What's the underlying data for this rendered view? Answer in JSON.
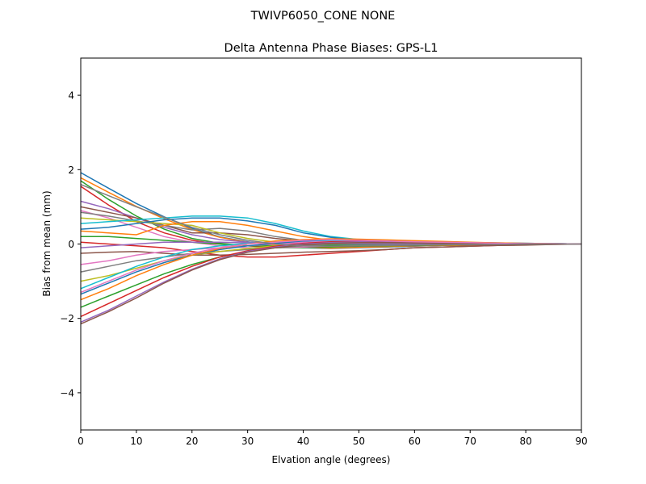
{
  "chart_data": {
    "type": "line",
    "suptitle": "TWIVP6050_CONE  NONE",
    "title": "Delta Antenna Phase Biases: GPS-L1",
    "xlabel": "Elvation angle (degrees)",
    "ylabel": "Bias from mean (mm)",
    "xlim": [
      0,
      90
    ],
    "ylim": [
      -5,
      5
    ],
    "xticks": [
      0,
      10,
      20,
      30,
      40,
      50,
      60,
      70,
      80,
      90
    ],
    "yticks": [
      -4,
      -2,
      0,
      2,
      4
    ],
    "ytick_labels": [
      "−4",
      "−2",
      "0",
      "2",
      "4"
    ],
    "grid": false,
    "colors": [
      "#1f77b4",
      "#ff7f0e",
      "#2ca02c",
      "#d62728",
      "#9467bd",
      "#8c564b",
      "#e377c2",
      "#7f7f7f",
      "#bcbd22",
      "#17becf"
    ],
    "x": [
      0,
      5,
      10,
      15,
      20,
      25,
      30,
      35,
      40,
      45,
      50,
      55,
      60,
      65,
      70,
      75,
      80,
      85,
      90
    ],
    "series": [
      {
        "values": [
          1.92,
          1.5,
          1.09,
          0.73,
          0.42,
          0.19,
          0.06,
          -0.04,
          -0.1,
          -0.12,
          -0.1,
          -0.08,
          -0.06,
          -0.04,
          -0.04,
          -0.02,
          -0.02,
          0,
          0
        ]
      },
      {
        "values": [
          1.78,
          1.39,
          1.01,
          0.68,
          0.39,
          0.18,
          0.05,
          -0.04,
          -0.09,
          -0.11,
          -0.09,
          -0.07,
          -0.05,
          -0.04,
          -0.04,
          -0.02,
          -0.02,
          0,
          0
        ]
      },
      {
        "values": [
          1.7,
          1.2,
          0.75,
          0.4,
          0.15,
          0.02,
          -0.05,
          -0.1,
          -0.1,
          -0.08,
          -0.06,
          -0.05,
          -0.04,
          -0.03,
          -0.02,
          -0.01,
          -0.01,
          0,
          0
        ]
      },
      {
        "values": [
          1.55,
          1.05,
          0.6,
          0.3,
          0.1,
          0,
          -0.05,
          -0.08,
          -0.08,
          -0.06,
          -0.05,
          -0.04,
          -0.03,
          -0.02,
          -0.02,
          -0.01,
          0,
          0,
          0
        ]
      },
      {
        "values": [
          1.15,
          0.95,
          0.7,
          0.45,
          0.25,
          0.12,
          0.05,
          0.02,
          0,
          -0.02,
          -0.02,
          -0.02,
          -0.01,
          -0.01,
          -0.01,
          0,
          0,
          0,
          0
        ]
      },
      {
        "values": [
          1.0,
          0.85,
          0.7,
          0.5,
          0.3,
          0.3,
          0.25,
          0.15,
          0.08,
          0.05,
          0.03,
          0.02,
          0.02,
          0.01,
          0.01,
          0,
          0,
          0,
          0
        ]
      },
      {
        "values": [
          0.9,
          0.7,
          0.45,
          0.2,
          0.05,
          -0.05,
          -0.1,
          -0.1,
          -0.08,
          -0.05,
          -0.04,
          -0.03,
          -0.02,
          -0.02,
          -0.01,
          -0.01,
          0,
          0,
          0
        ]
      },
      {
        "values": [
          0.85,
          0.75,
          0.62,
          0.5,
          0.38,
          0.42,
          0.35,
          0.2,
          0.1,
          0.05,
          0.03,
          0.02,
          0.02,
          0.01,
          0.01,
          0,
          0,
          0,
          0
        ]
      },
      {
        "values": [
          0.7,
          0.65,
          0.6,
          0.55,
          0.5,
          0.3,
          0.15,
          0.05,
          0,
          -0.02,
          -0.02,
          -0.02,
          -0.01,
          -0.01,
          0,
          0,
          0,
          0,
          0
        ]
      },
      {
        "values": [
          0.55,
          0.6,
          0.65,
          0.7,
          0.75,
          0.75,
          0.7,
          0.55,
          0.35,
          0.2,
          0.12,
          0.08,
          0.05,
          0.04,
          0.03,
          0.02,
          0.02,
          0.01,
          0
        ]
      },
      {
        "values": [
          0.4,
          0.45,
          0.55,
          0.65,
          0.7,
          0.7,
          0.62,
          0.5,
          0.3,
          0.18,
          0.1,
          0.07,
          0.05,
          0.03,
          0.02,
          0.02,
          0.01,
          0.01,
          0
        ]
      },
      {
        "values": [
          0.35,
          0.3,
          0.25,
          0.5,
          0.6,
          0.6,
          0.5,
          0.35,
          0.2,
          0.1,
          0.06,
          0.04,
          0.03,
          0.02,
          0.01,
          0.01,
          0,
          0,
          0
        ]
      },
      {
        "values": [
          0.2,
          0.2,
          0.15,
          0.1,
          0.05,
          0,
          -0.05,
          -0.05,
          -0.04,
          -0.03,
          -0.02,
          -0.02,
          -0.01,
          -0.01,
          0,
          0,
          0,
          0,
          0
        ]
      },
      {
        "values": [
          0.05,
          0.0,
          -0.05,
          -0.1,
          -0.2,
          -0.3,
          -0.35,
          -0.35,
          -0.3,
          -0.25,
          -0.2,
          -0.15,
          -0.1,
          -0.08,
          -0.06,
          -0.04,
          -0.02,
          -0.01,
          0
        ]
      },
      {
        "values": [
          -0.1,
          -0.05,
          0,
          0.05,
          0.05,
          0.05,
          0.03,
          0.02,
          0.01,
          0,
          0,
          0,
          0,
          0,
          0,
          0,
          0,
          0,
          0
        ]
      },
      {
        "values": [
          -0.25,
          -0.22,
          -0.2,
          -0.25,
          -0.3,
          -0.3,
          -0.28,
          -0.25,
          -0.22,
          -0.2,
          -0.18,
          -0.15,
          -0.1,
          -0.08,
          -0.06,
          -0.04,
          -0.03,
          -0.01,
          0
        ]
      },
      {
        "values": [
          -0.55,
          -0.45,
          -0.3,
          -0.2,
          -0.15,
          -0.1,
          -0.05,
          0,
          0.05,
          0.08,
          0.08,
          0.06,
          0.05,
          0.04,
          0.03,
          0.02,
          0.01,
          0.01,
          0
        ]
      },
      {
        "values": [
          -0.75,
          -0.6,
          -0.45,
          -0.35,
          -0.25,
          -0.2,
          -0.15,
          -0.1,
          -0.05,
          0,
          0.03,
          0.03,
          0.02,
          0.02,
          0.01,
          0.01,
          0,
          0,
          0
        ]
      },
      {
        "values": [
          -1.0,
          -0.85,
          -0.65,
          -0.45,
          -0.3,
          -0.2,
          -0.12,
          -0.05,
          0,
          0.05,
          0.06,
          0.05,
          0.04,
          0.03,
          0.02,
          0.01,
          0.01,
          0,
          0
        ]
      },
      {
        "values": [
          -1.2,
          -0.9,
          -0.6,
          -0.35,
          -0.15,
          -0.05,
          0.02,
          0.05,
          0.08,
          0.1,
          0.1,
          0.08,
          0.06,
          0.05,
          0.03,
          0.02,
          0.01,
          0.01,
          0
        ]
      },
      {
        "values": [
          -1.35,
          -1.05,
          -0.75,
          -0.5,
          -0.3,
          -0.15,
          -0.05,
          0.02,
          0.08,
          0.12,
          0.12,
          0.1,
          0.08,
          0.06,
          0.04,
          0.03,
          0.02,
          0.01,
          0
        ]
      },
      {
        "values": [
          -1.5,
          -1.2,
          -0.85,
          -0.55,
          -0.3,
          -0.12,
          0,
          0.08,
          0.12,
          0.14,
          0.13,
          0.11,
          0.09,
          0.07,
          0.05,
          0.03,
          0.02,
          0.01,
          0
        ]
      },
      {
        "values": [
          -1.7,
          -1.4,
          -1.1,
          -0.8,
          -0.55,
          -0.35,
          -0.2,
          -0.1,
          -0.02,
          0.03,
          0.05,
          0.05,
          0.04,
          0.03,
          0.02,
          0.01,
          0.01,
          0,
          0
        ]
      },
      {
        "values": [
          -1.95,
          -1.6,
          -1.25,
          -0.9,
          -0.6,
          -0.35,
          -0.18,
          -0.06,
          0.02,
          0.06,
          0.07,
          0.06,
          0.05,
          0.04,
          0.03,
          0.02,
          0.01,
          0,
          0
        ]
      },
      {
        "values": [
          -2.1,
          -1.78,
          -1.4,
          -1.02,
          -0.68,
          -0.4,
          -0.2,
          -0.08,
          0,
          0.04,
          0.06,
          0.05,
          0.04,
          0.03,
          0.02,
          0.01,
          0.01,
          0,
          0
        ]
      },
      {
        "values": [
          -2.15,
          -1.82,
          -1.45,
          -1.05,
          -0.7,
          -0.42,
          -0.22,
          -0.1,
          -0.02,
          0.02,
          0.04,
          0.04,
          0.03,
          0.02,
          0.02,
          0.01,
          0,
          0,
          0
        ]
      },
      {
        "values": [
          -1.3,
          -1.0,
          -0.7,
          -0.45,
          -0.25,
          -0.1,
          0,
          0.05,
          0.1,
          0.12,
          0.1,
          0.08,
          0.06,
          0.05,
          0.04,
          0.02,
          0.01,
          0.01,
          0
        ]
      },
      {
        "values": [
          1.6,
          1.3,
          1.0,
          0.72,
          0.45,
          0.25,
          0.1,
          0,
          -0.05,
          -0.06,
          -0.05,
          -0.04,
          -0.03,
          -0.02,
          -0.02,
          -0.01,
          0,
          0,
          0
        ]
      }
    ]
  }
}
